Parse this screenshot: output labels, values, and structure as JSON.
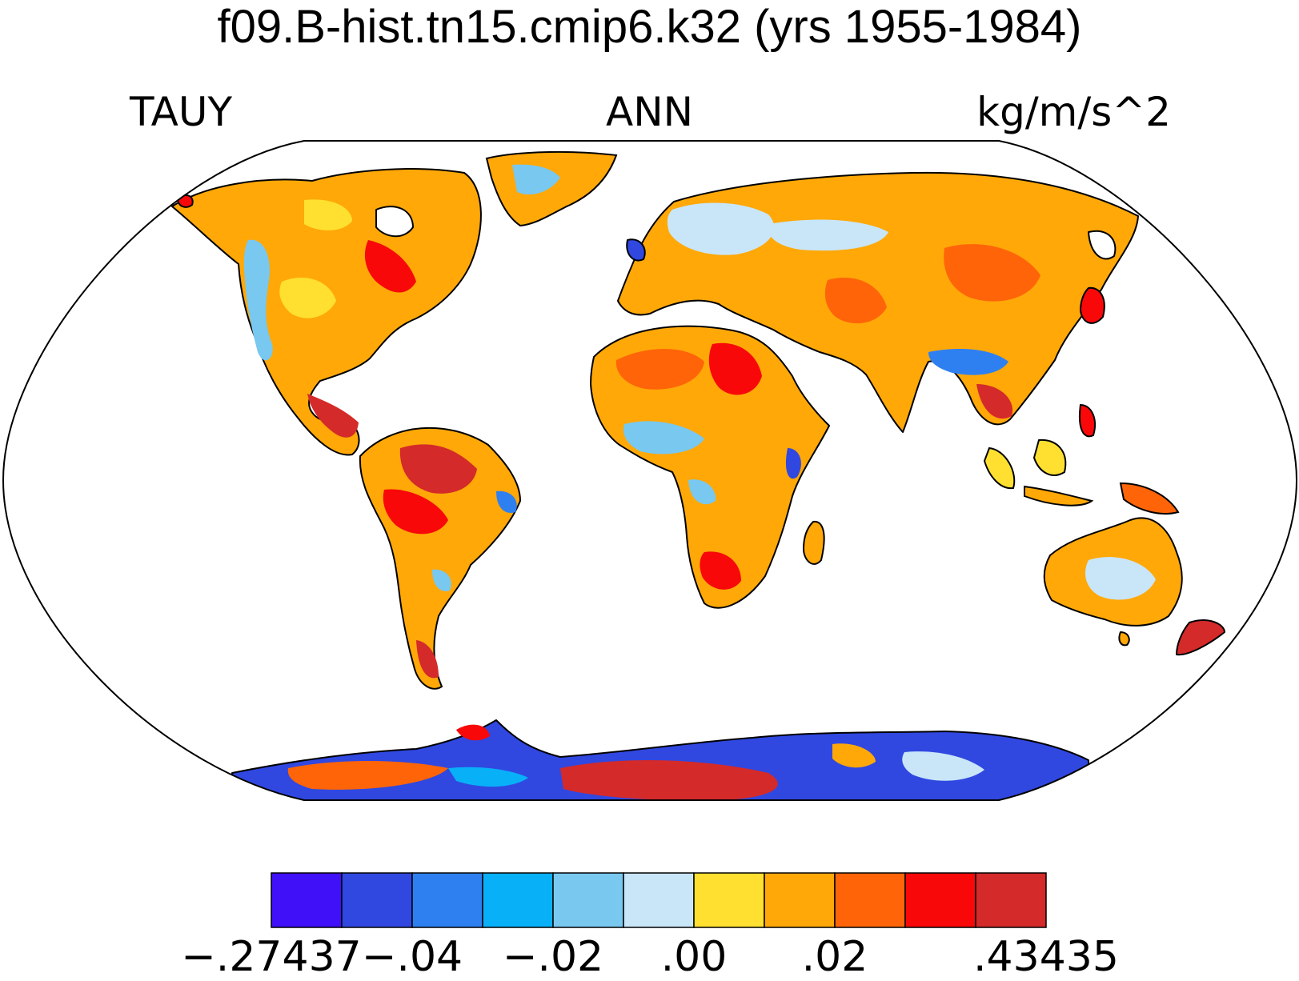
{
  "title": "f09.B-hist.tn15.cmip6.k32 (yrs 1955-1984)",
  "variable": "TAUY",
  "season": "ANN",
  "units": "kg/m/s^2",
  "projection": "Robinson",
  "colorbar": {
    "colors": [
      "#4010F8",
      "#3048E0",
      "#2E80F0",
      "#08B0F8",
      "#78C8F0",
      "#C8E6F8",
      "#FFE030",
      "#FFA808",
      "#FF6408",
      "#F80808",
      "#D42A2A"
    ],
    "tick_labels": [
      "−.27437",
      "−.04",
      "−.02",
      ".00",
      ".02",
      ".43435"
    ],
    "tick_edges": [
      0,
      2,
      4,
      6,
      8,
      11
    ]
  }
}
